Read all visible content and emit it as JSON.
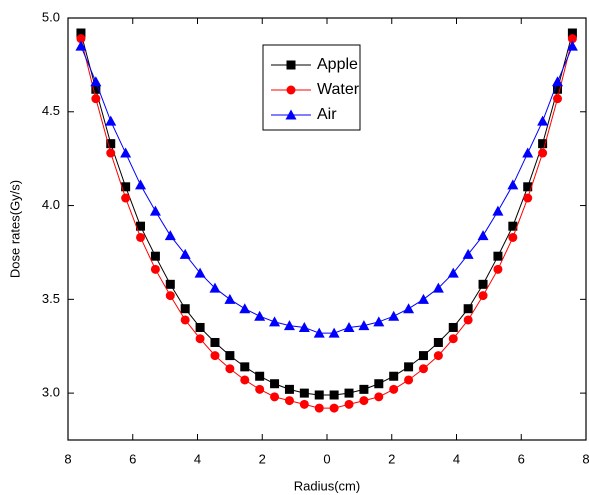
{
  "chart_data": {
    "type": "line",
    "xlabel": "Radius(cm)",
    "ylabel": "Dose rates(Gy/s)",
    "x": [
      -7.6,
      -7.14,
      -6.68,
      -6.22,
      -5.76,
      -5.3,
      -4.84,
      -4.38,
      -3.92,
      -3.46,
      -3.0,
      -2.54,
      -2.08,
      -1.62,
      -1.16,
      -0.7,
      -0.24,
      0.22,
      0.68,
      1.14,
      1.6,
      2.06,
      2.52,
      2.98,
      3.44,
      3.9,
      4.36,
      4.82,
      5.28,
      5.74,
      6.2,
      6.66,
      7.12,
      7.58
    ],
    "series": [
      {
        "name": "Apple",
        "color": "#000000",
        "marker": "square",
        "values": [
          4.92,
          4.62,
          4.33,
          4.1,
          3.89,
          3.73,
          3.58,
          3.45,
          3.35,
          3.27,
          3.2,
          3.14,
          3.09,
          3.05,
          3.02,
          3.0,
          2.99,
          2.99,
          3.0,
          3.02,
          3.05,
          3.09,
          3.14,
          3.2,
          3.27,
          3.35,
          3.45,
          3.58,
          3.73,
          3.89,
          4.1,
          4.33,
          4.62,
          4.92
        ]
      },
      {
        "name": "Water",
        "color": "#ff0000",
        "marker": "circle",
        "values": [
          4.89,
          4.57,
          4.28,
          4.04,
          3.83,
          3.66,
          3.52,
          3.39,
          3.29,
          3.2,
          3.13,
          3.07,
          3.02,
          2.98,
          2.96,
          2.94,
          2.92,
          2.92,
          2.94,
          2.96,
          2.98,
          3.02,
          3.07,
          3.13,
          3.2,
          3.29,
          3.39,
          3.52,
          3.66,
          3.83,
          4.04,
          4.28,
          4.57,
          4.89
        ]
      },
      {
        "name": "Air",
        "color": "#0000ff",
        "marker": "triangle",
        "values": [
          4.85,
          4.66,
          4.45,
          4.28,
          4.11,
          3.97,
          3.84,
          3.74,
          3.64,
          3.56,
          3.5,
          3.45,
          3.41,
          3.38,
          3.36,
          3.35,
          3.32,
          3.32,
          3.35,
          3.36,
          3.38,
          3.41,
          3.45,
          3.5,
          3.56,
          3.64,
          3.74,
          3.84,
          3.97,
          4.11,
          4.28,
          4.45,
          4.66,
          4.85
        ]
      }
    ],
    "xlim": [
      -8,
      8
    ],
    "xticks": [
      {
        "value": -8,
        "label": "8"
      },
      {
        "value": -6,
        "label": "6"
      },
      {
        "value": -4,
        "label": "4"
      },
      {
        "value": -2,
        "label": "2"
      },
      0,
      2,
      4,
      6,
      8
    ],
    "ylim": [
      2.75,
      5.0
    ],
    "yticks": [
      {
        "value": 3,
        "label": "3.0"
      },
      3.5,
      {
        "value": 4,
        "label": "4.0"
      },
      4.5,
      {
        "value": 5,
        "label": "5.0"
      }
    ],
    "legend": "upper-center"
  }
}
